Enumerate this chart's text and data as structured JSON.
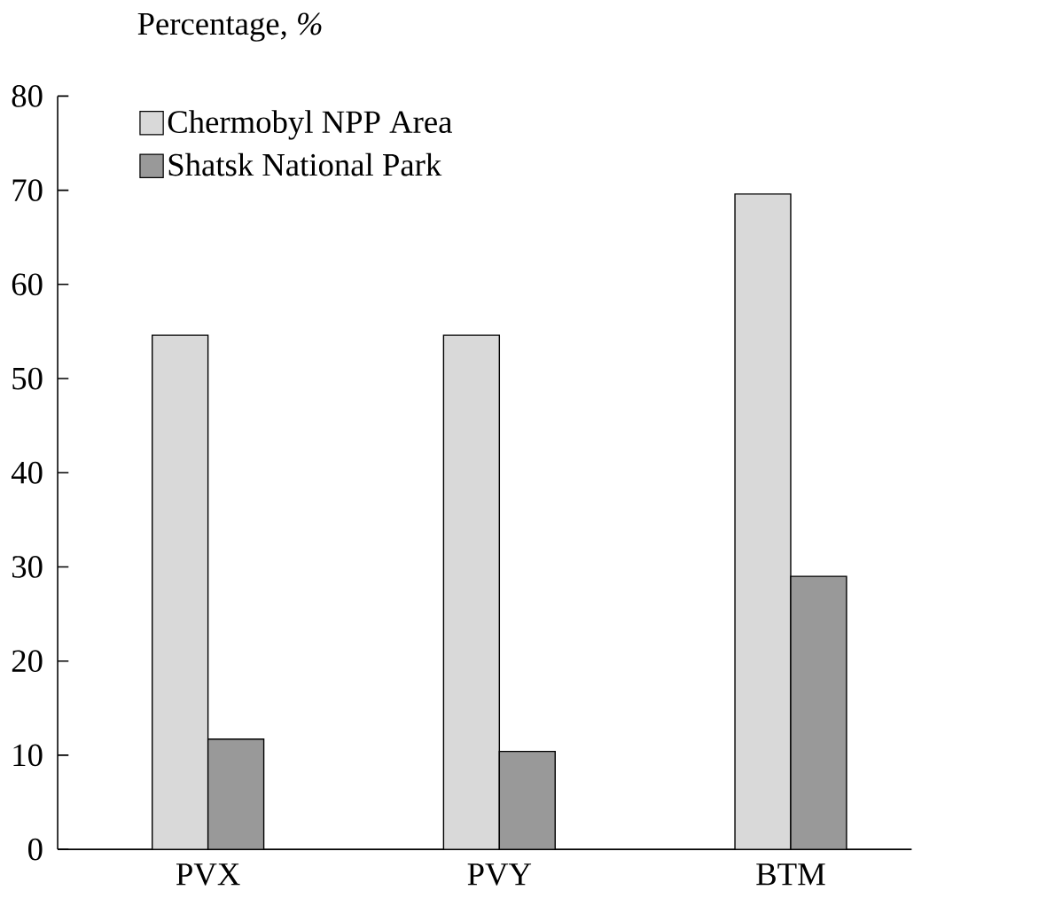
{
  "chart_data": {
    "type": "bar",
    "ylabel": "Percentage, *%*",
    "categories": [
      "PVX",
      "PVY",
      "BTM"
    ],
    "series": [
      {
        "name": "Chermobyl NPP Area",
        "color": "#d9d9d9",
        "values": [
          54.6,
          54.6,
          69.6
        ]
      },
      {
        "name": "Shatsk National Park",
        "color": "#999999",
        "values": [
          11.7,
          10.4,
          29.0
        ]
      }
    ],
    "ylim": [
      0,
      80
    ],
    "yticks": [
      0,
      10,
      20,
      30,
      40,
      50,
      60,
      70,
      80
    ],
    "legend": "top left"
  }
}
